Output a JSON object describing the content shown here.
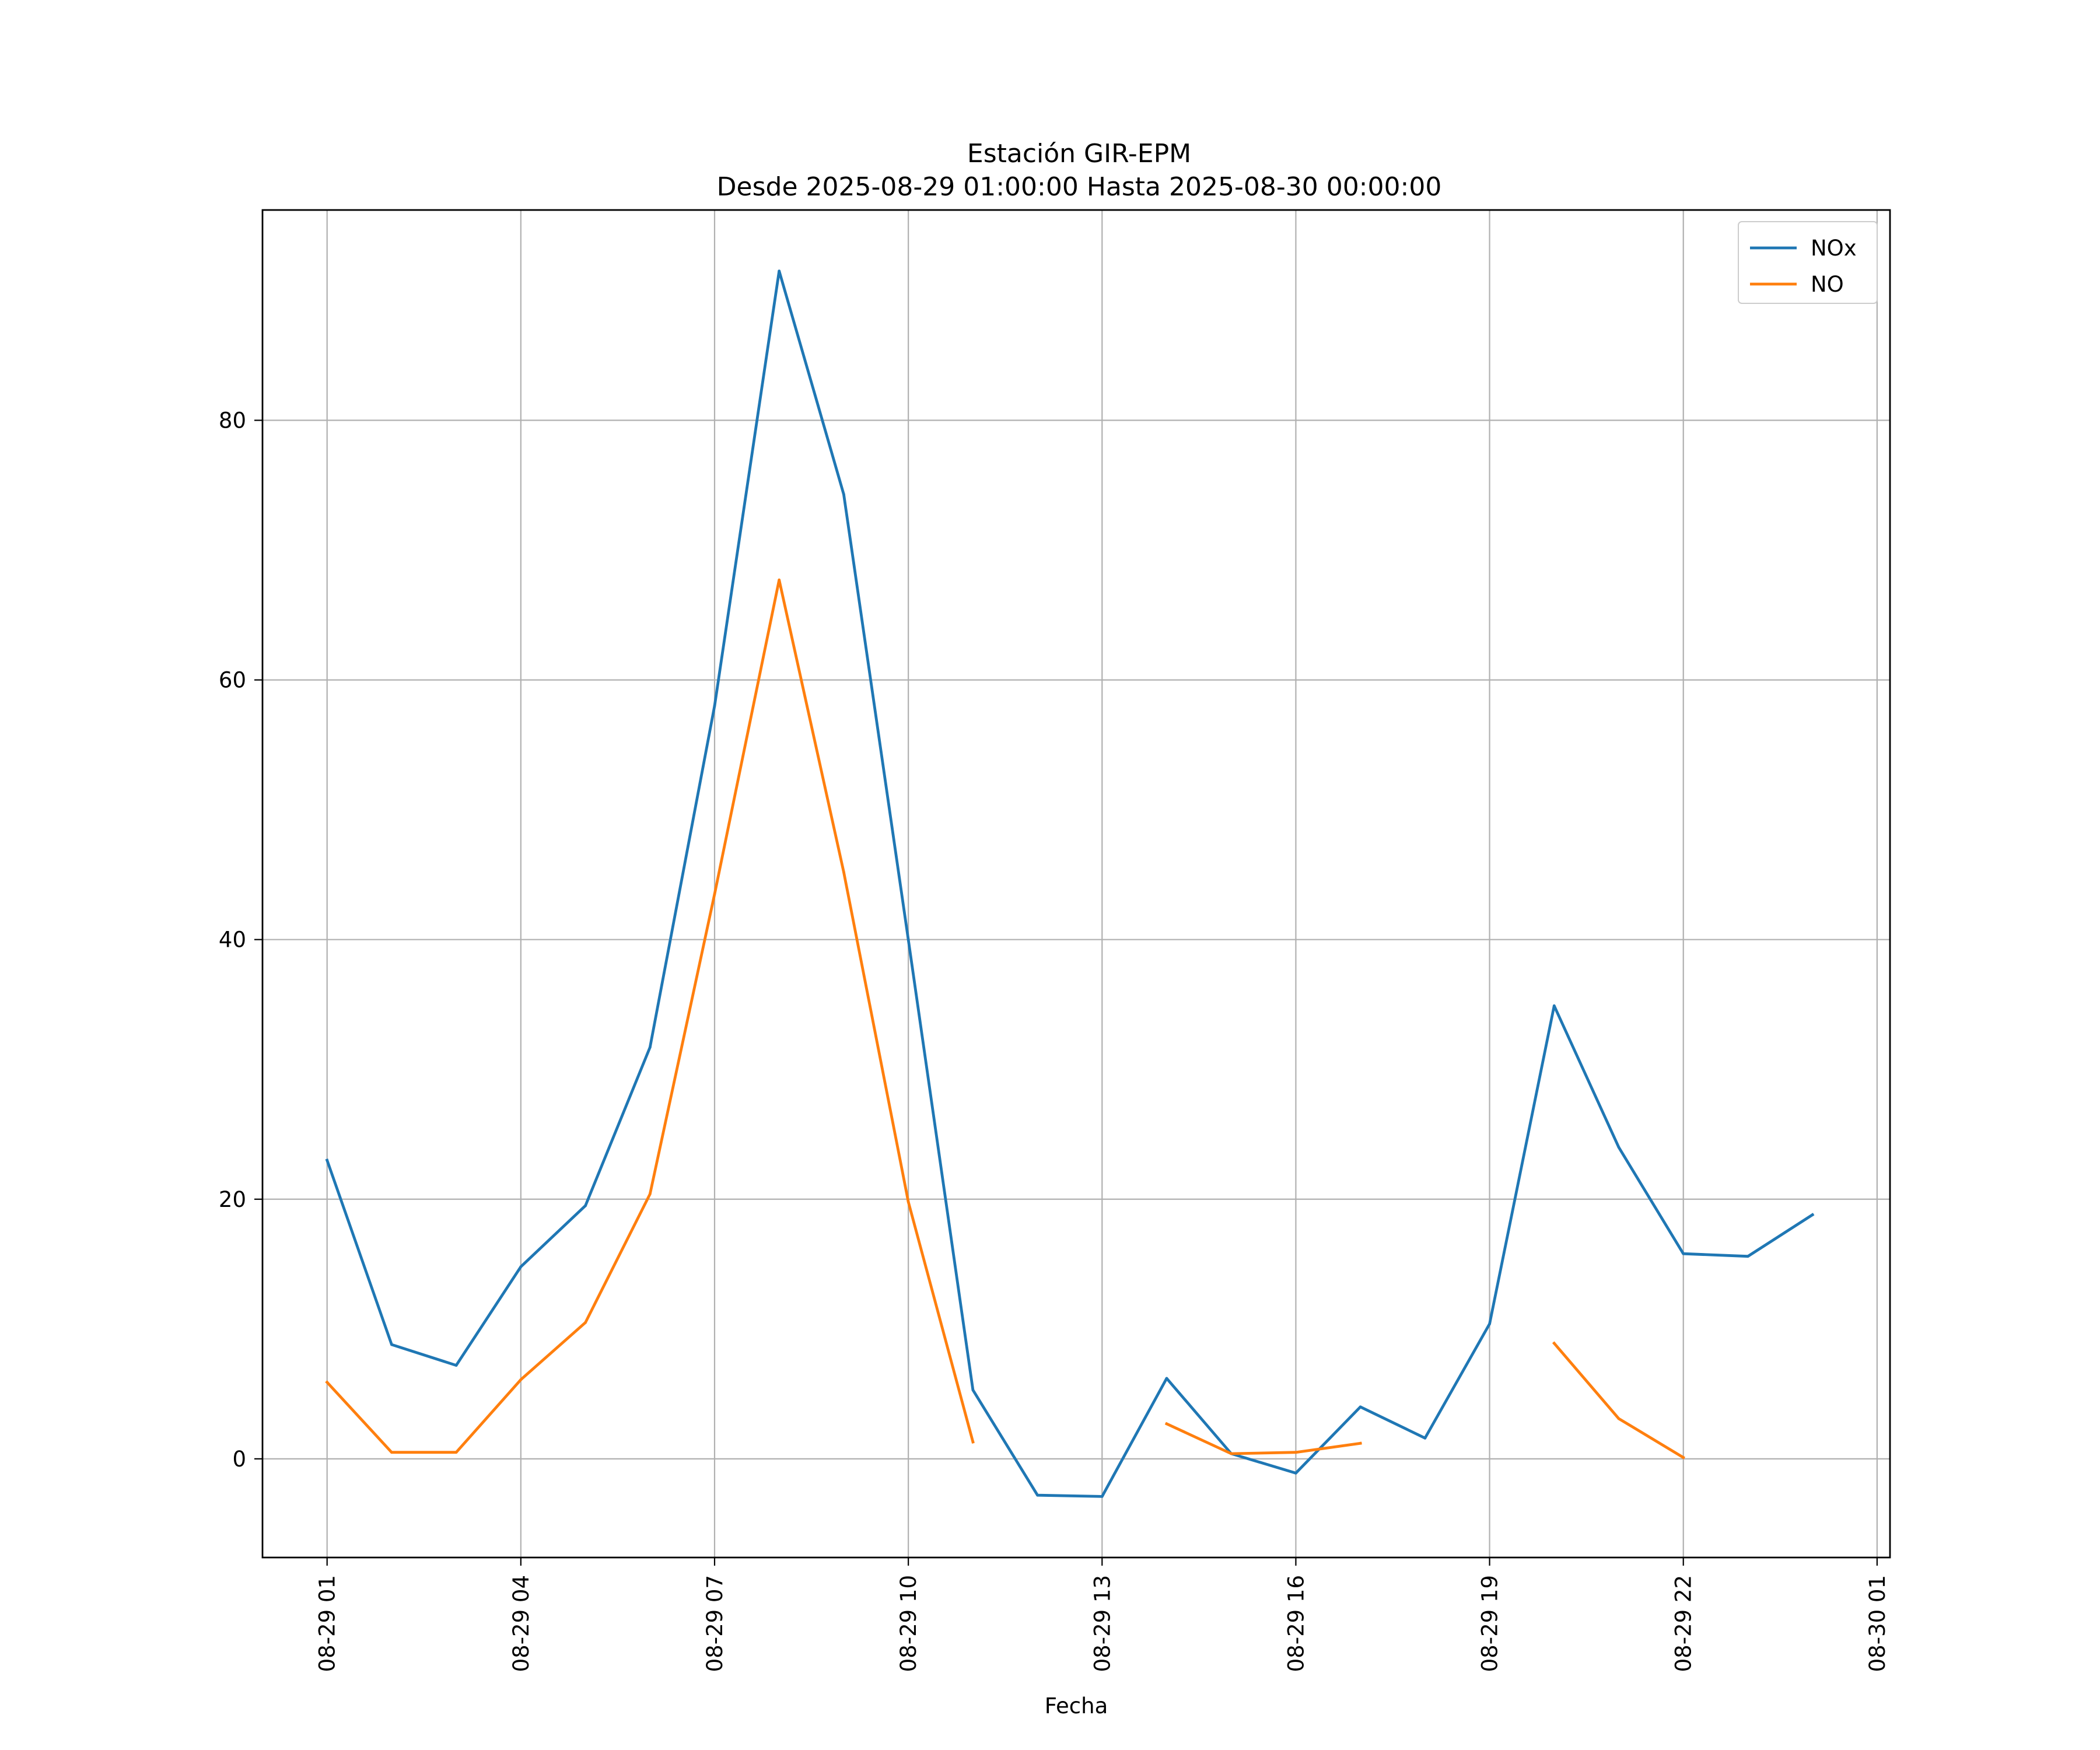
{
  "chart_data": {
    "type": "line",
    "title": "Estación GIR-EPM",
    "subtitle": "Desde 2025-08-29 01:00:00 Hasta 2025-08-30 00:00:00",
    "xlabel": "Fecha",
    "ylabel": "",
    "x": [
      "2025-08-29 01:00",
      "2025-08-29 02:00",
      "2025-08-29 03:00",
      "2025-08-29 04:00",
      "2025-08-29 05:00",
      "2025-08-29 06:00",
      "2025-08-29 07:00",
      "2025-08-29 08:00",
      "2025-08-29 09:00",
      "2025-08-29 10:00",
      "2025-08-29 11:00",
      "2025-08-29 12:00",
      "2025-08-29 13:00",
      "2025-08-29 14:00",
      "2025-08-29 15:00",
      "2025-08-29 16:00",
      "2025-08-29 17:00",
      "2025-08-29 18:00",
      "2025-08-29 19:00",
      "2025-08-29 20:00",
      "2025-08-29 21:00",
      "2025-08-29 22:00",
      "2025-08-29 23:00",
      "2025-08-30 00:00"
    ],
    "series": [
      {
        "name": "NOx",
        "color": "#1f77b4",
        "values": [
          23.0,
          8.8,
          7.2,
          14.8,
          19.5,
          31.7,
          58.0,
          91.5,
          74.3,
          40.0,
          5.3,
          -2.8,
          -2.9,
          6.2,
          0.4,
          -1.1,
          4.0,
          1.6,
          10.4,
          34.9,
          24.0,
          15.8,
          15.6,
          18.8
        ]
      },
      {
        "name": "NO",
        "color": "#ff7f0e",
        "values": [
          5.9,
          0.5,
          0.5,
          6.1,
          10.5,
          20.4,
          43.5,
          67.7,
          45.2,
          19.8,
          1.3,
          null,
          null,
          2.7,
          0.4,
          0.5,
          1.2,
          null,
          null,
          8.9,
          3.1,
          0.1,
          null,
          null
        ]
      }
    ],
    "x_ticks": [
      "08-29 01",
      "08-29 04",
      "08-29 07",
      "08-29 10",
      "08-29 13",
      "08-29 16",
      "08-29 19",
      "08-29 22",
      "08-30 01"
    ],
    "y_ticks": [
      0,
      20,
      40,
      60,
      80
    ],
    "ylim": [
      -7.6,
      96.2
    ],
    "xlim": [
      "2025-08-29 00:00",
      "2025-08-30 01:12"
    ],
    "grid": true,
    "legend_position": "top-right"
  }
}
